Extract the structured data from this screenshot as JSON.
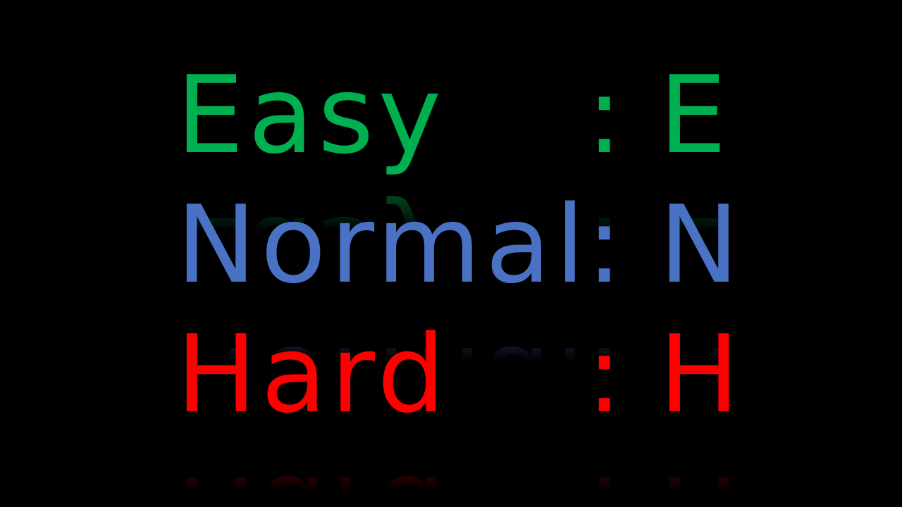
{
  "difficulty_menu": {
    "options": [
      {
        "label": "Easy",
        "separator": ":",
        "key": "E",
        "color": "#00b050"
      },
      {
        "label": "Normal",
        "separator": ":",
        "key": "N",
        "color": "#4a72c4"
      },
      {
        "label": "Hard",
        "separator": ":",
        "key": "H",
        "color": "#ff0000"
      }
    ]
  }
}
